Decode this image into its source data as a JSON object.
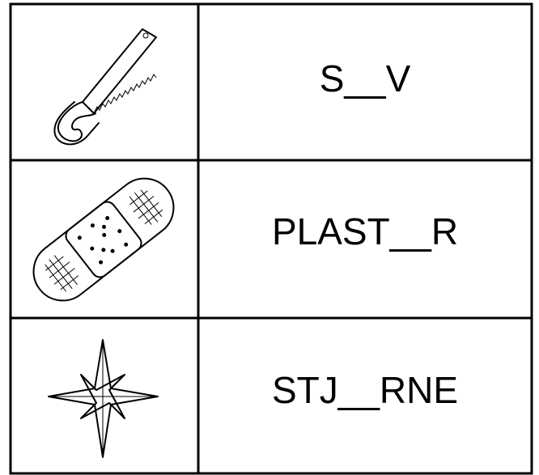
{
  "table": {
    "rows": [
      {
        "word": "S__V"
      },
      {
        "word": "PLAST__R"
      },
      {
        "word": "STJ__RNE"
      }
    ]
  }
}
